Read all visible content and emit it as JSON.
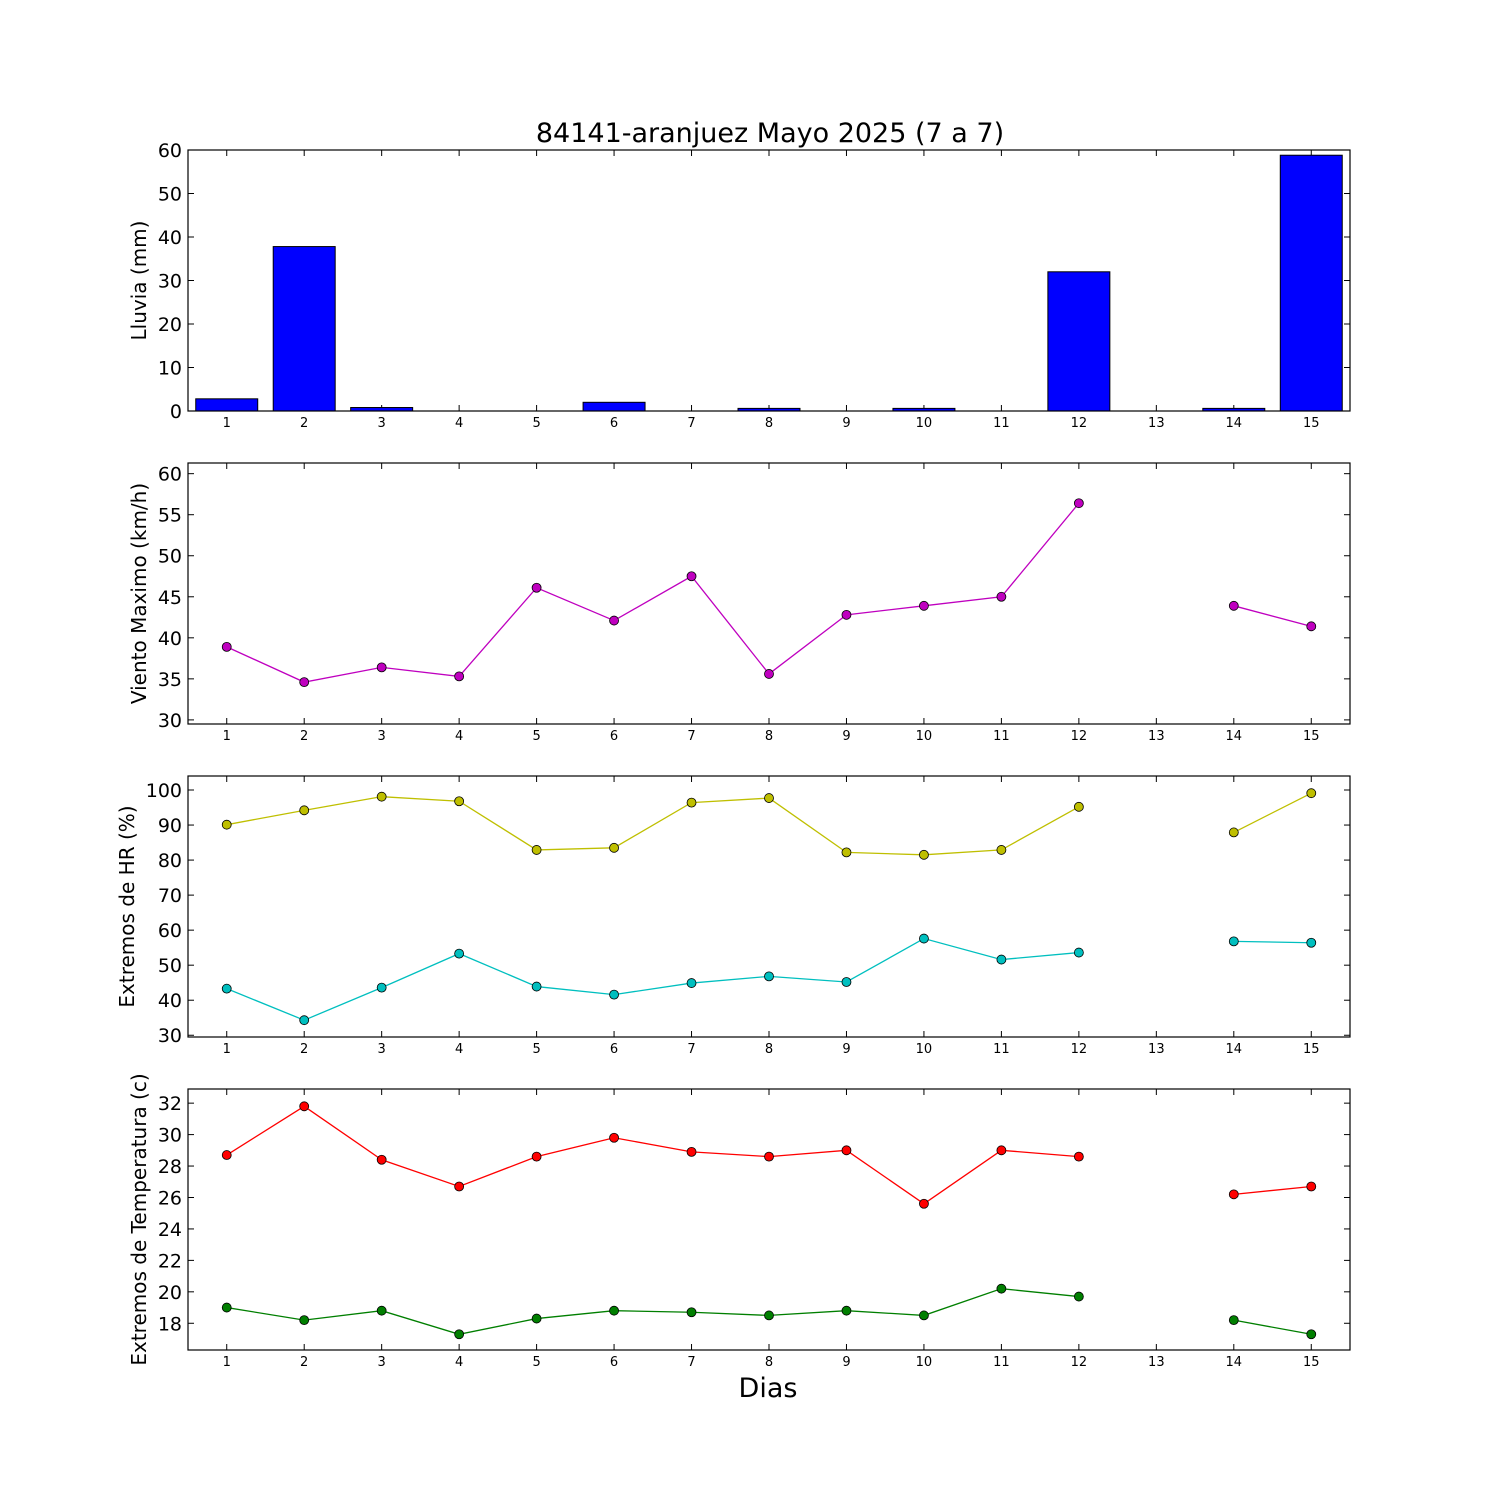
{
  "title": "84141-aranjuez Mayo 2025  (7 a 7)",
  "xlabel": "Dias",
  "chart_data": [
    {
      "type": "bar",
      "ylabel": "Lluvia (mm)",
      "ylim": [
        0,
        60
      ],
      "yticks": [
        0,
        10,
        20,
        30,
        40,
        50,
        60
      ],
      "x": [
        1,
        2,
        3,
        4,
        5,
        6,
        7,
        8,
        9,
        10,
        11,
        12,
        13,
        14,
        15
      ],
      "xlim": [
        0.5,
        15.5
      ],
      "series": [
        {
          "values": [
            2.8,
            37.8,
            0.8,
            0.0,
            0.0,
            2.0,
            0.0,
            0.6,
            0.0,
            0.6,
            0.0,
            32.0,
            0.0,
            0.6,
            58.8
          ],
          "color": "#0000ff"
        }
      ],
      "grid": false
    },
    {
      "type": "line",
      "ylabel": "Viento Maximo (km/h)",
      "ylim": [
        29.5,
        61.3
      ],
      "yticks": [
        30,
        35,
        40,
        45,
        50,
        55,
        60
      ],
      "x": [
        1,
        2,
        3,
        4,
        5,
        6,
        7,
        8,
        9,
        10,
        11,
        12,
        13,
        14,
        15
      ],
      "xlim": [
        0.5,
        15.5
      ],
      "series": [
        {
          "values": [
            38.9,
            34.6,
            36.4,
            35.3,
            46.1,
            42.1,
            47.5,
            35.6,
            42.8,
            43.9,
            45.0,
            56.4,
            null,
            43.9,
            41.4
          ],
          "color": "#bf00bf"
        }
      ],
      "grid": false
    },
    {
      "type": "line",
      "ylabel": "Extremos de HR (%)",
      "ylim": [
        29.5,
        104
      ],
      "yticks": [
        30,
        40,
        50,
        60,
        70,
        80,
        90,
        100
      ],
      "x": [
        1,
        2,
        3,
        4,
        5,
        6,
        7,
        8,
        9,
        10,
        11,
        12,
        13,
        14,
        15
      ],
      "xlim": [
        0.5,
        15.5
      ],
      "series": [
        {
          "values": [
            90.1,
            94.2,
            98.1,
            96.8,
            82.9,
            83.5,
            96.4,
            97.7,
            82.2,
            81.5,
            82.9,
            95.2,
            null,
            87.9,
            99.1
          ],
          "color": "#bfbf00"
        },
        {
          "values": [
            43.3,
            34.3,
            43.6,
            53.3,
            43.9,
            41.6,
            44.9,
            46.8,
            45.2,
            57.6,
            51.6,
            53.6,
            null,
            56.8,
            56.4
          ],
          "color": "#00bfbf"
        }
      ],
      "grid": false
    },
    {
      "type": "line",
      "ylabel": "Extremos de Temperatura (c)",
      "ylim": [
        16.3,
        32.9
      ],
      "yticks": [
        18,
        20,
        22,
        24,
        26,
        28,
        30,
        32
      ],
      "x": [
        1,
        2,
        3,
        4,
        5,
        6,
        7,
        8,
        9,
        10,
        11,
        12,
        13,
        14,
        15
      ],
      "xlim": [
        0.5,
        15.5
      ],
      "series": [
        {
          "values": [
            28.7,
            31.8,
            28.4,
            26.7,
            28.6,
            29.8,
            28.9,
            28.6,
            29.0,
            25.6,
            29.0,
            28.6,
            null,
            26.2,
            26.7
          ],
          "color": "#ff0000"
        },
        {
          "values": [
            19.0,
            18.2,
            18.8,
            17.3,
            18.3,
            18.8,
            18.7,
            18.5,
            18.8,
            18.5,
            20.2,
            19.7,
            null,
            18.2,
            17.3
          ],
          "color": "#007f00"
        }
      ],
      "grid": false
    }
  ],
  "xticks": [
    "1",
    "2",
    "3",
    "4",
    "5",
    "6",
    "7",
    "8",
    "9",
    "10",
    "11",
    "12",
    "13",
    "14",
    "15"
  ]
}
